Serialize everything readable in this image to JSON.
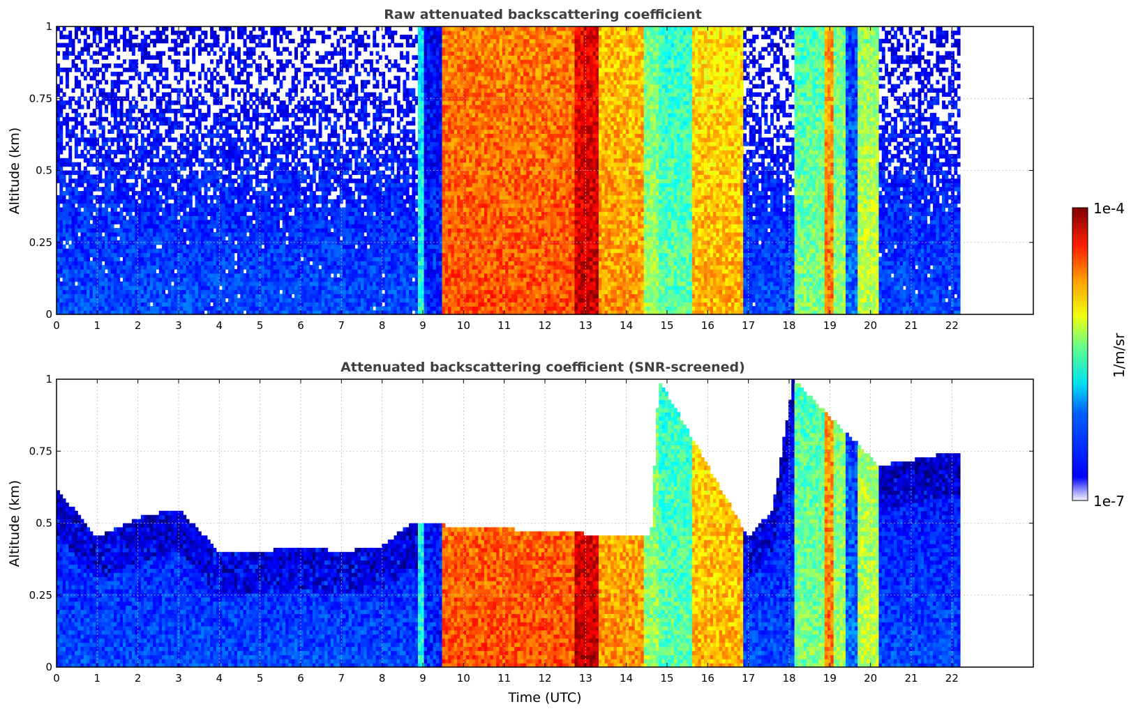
{
  "chart_data": [
    {
      "type": "heatmap",
      "title": "Raw attenuated backscattering coefficient",
      "xlabel": "",
      "ylabel": "Altitude (km)",
      "xlim": [
        0,
        24
      ],
      "ylim": [
        0,
        1
      ],
      "data_extent_x": [
        0,
        22.2
      ],
      "xticks": [
        "0",
        "1",
        "2",
        "3",
        "4",
        "5",
        "6",
        "7",
        "8",
        "9",
        "10",
        "11",
        "12",
        "13",
        "14",
        "15",
        "16",
        "17",
        "18",
        "19",
        "20",
        "21",
        "22"
      ],
      "yticks": [
        "0",
        "0.25",
        "0.5",
        "0.75",
        "1"
      ],
      "grid": true,
      "screened": false,
      "segments": [
        {
          "x": [
            0.0,
            8.85
          ],
          "regime": "clear-noisy",
          "log10_value_near_surface": -6.4
        },
        {
          "x": [
            8.85,
            9.05
          ],
          "regime": "thin-cloud",
          "log10_value": -5.8
        },
        {
          "x": [
            9.05,
            9.5
          ],
          "regime": "clear",
          "log10_value": -6.5
        },
        {
          "x": [
            9.5,
            12.7
          ],
          "regime": "thick-cloud",
          "log10_value": -4.6
        },
        {
          "x": [
            12.7,
            13.3
          ],
          "regime": "thick-cloud",
          "log10_value": -4.2
        },
        {
          "x": [
            13.3,
            14.4
          ],
          "regime": "thick-cloud",
          "log10_value": -4.8
        },
        {
          "x": [
            14.4,
            14.8
          ],
          "regime": "thin-cloud",
          "log10_value": -5.4
        },
        {
          "x": [
            14.8,
            15.6
          ],
          "regime": "thin-cloud",
          "log10_value": -5.6
        },
        {
          "x": [
            15.6,
            16.9
          ],
          "regime": "thick-cloud",
          "log10_value": -4.9
        },
        {
          "x": [
            16.9,
            18.1
          ],
          "regime": "clear-noisy",
          "log10_value_near_surface": -6.4
        },
        {
          "x": [
            18.1,
            18.9
          ],
          "regime": "thin-cloud",
          "log10_value": -5.5
        },
        {
          "x": [
            18.9,
            19.1
          ],
          "regime": "thick-cloud",
          "log10_value": -4.7
        },
        {
          "x": [
            19.1,
            19.4
          ],
          "regime": "thin-cloud",
          "log10_value": -5.4
        },
        {
          "x": [
            19.4,
            19.65
          ],
          "regime": "clear",
          "log10_value": -6.3
        },
        {
          "x": [
            19.65,
            20.2
          ],
          "regime": "thin-cloud",
          "log10_value": -5.3
        },
        {
          "x": [
            20.2,
            22.2
          ],
          "regime": "clear-noisy",
          "log10_value_near_surface": -6.4
        }
      ]
    },
    {
      "type": "heatmap",
      "title": "Attenuated backscattering coefficient (SNR-screened)",
      "xlabel": "Time (UTC)",
      "ylabel": "Altitude (km)",
      "xlim": [
        0,
        24
      ],
      "ylim": [
        0,
        1
      ],
      "data_extent_x": [
        0,
        22.2
      ],
      "xticks": [
        "0",
        "1",
        "2",
        "3",
        "4",
        "5",
        "6",
        "7",
        "8",
        "9",
        "10",
        "11",
        "12",
        "13",
        "14",
        "15",
        "16",
        "17",
        "18",
        "19",
        "20",
        "21",
        "22"
      ],
      "yticks": [
        "0",
        "0.25",
        "0.5",
        "0.75",
        "1"
      ],
      "grid": true,
      "screened": true,
      "screen_top_km": [
        {
          "x": 0.0,
          "top": 0.62
        },
        {
          "x": 1.0,
          "top": 0.45
        },
        {
          "x": 2.0,
          "top": 0.52
        },
        {
          "x": 3.0,
          "top": 0.55
        },
        {
          "x": 4.0,
          "top": 0.4
        },
        {
          "x": 5.0,
          "top": 0.4
        },
        {
          "x": 6.0,
          "top": 0.42
        },
        {
          "x": 7.0,
          "top": 0.4
        },
        {
          "x": 8.0,
          "top": 0.42
        },
        {
          "x": 8.7,
          "top": 0.5
        },
        {
          "x": 14.6,
          "top": 0.45
        },
        {
          "x": 14.8,
          "top": 1.0
        },
        {
          "x": 17.0,
          "top": 0.45
        },
        {
          "x": 17.6,
          "top": 0.55
        },
        {
          "x": 18.1,
          "top": 1.0
        },
        {
          "x": 20.2,
          "top": 0.7
        },
        {
          "x": 22.2,
          "top": 0.75
        }
      ]
    }
  ],
  "colorbar": {
    "label": "1/m/sr",
    "max_label": "1e-4",
    "min_label": "1e-7",
    "log10_range": [
      -7,
      -4
    ],
    "colormap": "jet"
  }
}
